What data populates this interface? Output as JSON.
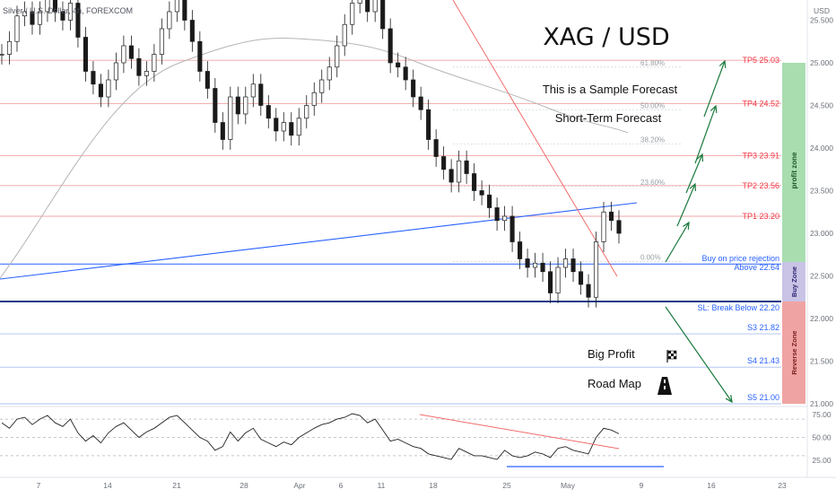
{
  "header": {
    "symbol_line": "Silver / U.S. Dollar, 4h, FOREXCOM"
  },
  "annotations": {
    "title": "XAG / USD",
    "sample": "This is a Sample Forecast",
    "short_term": "Short-Term Forecast",
    "big_profit": "Big Profit",
    "road_map": "Road Map",
    "buy_line1": "Buy on price rejection",
    "buy_line2": "Above 22.64",
    "sl": "SL: Break Below 22.20"
  },
  "zones": {
    "profit": "profit zone",
    "buy": "Buy Zone",
    "reverse": "Reverse Zone"
  },
  "colors": {
    "profit_zone": "#a9ddb0",
    "buy_zone": "#c9c3e6",
    "reverse_zone": "#f0a3a3",
    "red_line": "#f26b6b",
    "blue_line": "#2962ff",
    "candle": "#1a1a1a",
    "arrow": "#1b7a3e"
  },
  "chart_data": {
    "type": "line",
    "price_axis": {
      "unit": "USD",
      "ticks": [
        "25.500",
        "25.000",
        "24.500",
        "24.000",
        "23.500",
        "23.000",
        "22.500",
        "22.000",
        "21.500",
        "21.000"
      ],
      "range": [
        21.0,
        25.7
      ]
    },
    "rsi_axis": {
      "ticks": [
        "75.00",
        "50.00",
        "25.00"
      ],
      "range": [
        20,
        80
      ]
    },
    "time_ticks": [
      "7",
      "14",
      "21",
      "28",
      "Apr",
      "6",
      "11",
      "18",
      "25",
      "May",
      "9",
      "16",
      "23"
    ],
    "targets": [
      {
        "label": "TP5 25.03",
        "price": 25.03
      },
      {
        "label": "TP4 24.52",
        "price": 24.52
      },
      {
        "label": "TP3 23.91",
        "price": 23.91
      },
      {
        "label": "TP2 23.56",
        "price": 23.56
      },
      {
        "label": "TP1 23.20",
        "price": 23.2
      }
    ],
    "supports": [
      {
        "label": "S3 21.82",
        "price": 21.82
      },
      {
        "label": "S4 21.43",
        "price": 21.43
      },
      {
        "label": "S5 21.00",
        "price": 21.0
      }
    ],
    "entry_price": 22.64,
    "stop_price": 22.2,
    "fib_levels": [
      {
        "label": "61.80%",
        "price": 24.95
      },
      {
        "label": "50.00%",
        "price": 24.45
      },
      {
        "label": "38.20%",
        "price": 24.05
      },
      {
        "label": "23.60%",
        "price": 23.55
      },
      {
        "label": "0.00%",
        "price": 22.67
      }
    ],
    "price_series": [
      25.1,
      25.25,
      25.55,
      25.6,
      25.45,
      25.6,
      25.75,
      25.6,
      25.5,
      25.7,
      25.3,
      24.9,
      24.75,
      24.6,
      24.8,
      25.0,
      25.2,
      25.05,
      24.85,
      24.9,
      25.1,
      25.4,
      25.6,
      25.75,
      25.5,
      25.25,
      24.9,
      24.7,
      24.3,
      24.1,
      24.6,
      24.4,
      24.6,
      24.75,
      24.5,
      24.35,
      24.2,
      24.3,
      24.15,
      24.35,
      24.5,
      24.65,
      24.8,
      24.95,
      25.2,
      25.45,
      25.7,
      25.8,
      25.6,
      25.75,
      25.4,
      25.0,
      24.95,
      24.8,
      24.6,
      24.45,
      24.1,
      23.9,
      23.75,
      23.6,
      23.85,
      23.7,
      23.5,
      23.45,
      23.3,
      23.15,
      23.2,
      22.9,
      22.7,
      22.6,
      22.65,
      22.55,
      22.3,
      22.6,
      22.7,
      22.55,
      22.4,
      22.25,
      22.9,
      23.25,
      23.15,
      23.0
    ],
    "rsi_series": [
      66,
      60,
      70,
      72,
      64,
      70,
      74,
      66,
      62,
      70,
      55,
      46,
      52,
      44,
      55,
      62,
      66,
      58,
      50,
      56,
      60,
      66,
      72,
      74,
      66,
      58,
      50,
      46,
      36,
      40,
      56,
      46,
      55,
      60,
      48,
      44,
      40,
      45,
      42,
      50,
      55,
      60,
      64,
      66,
      70,
      72,
      76,
      74,
      66,
      70,
      58,
      46,
      48,
      44,
      40,
      38,
      32,
      30,
      28,
      26,
      38,
      34,
      30,
      30,
      28,
      26,
      36,
      30,
      28,
      30,
      34,
      32,
      28,
      38,
      40,
      36,
      34,
      32,
      50,
      60,
      58,
      54
    ]
  }
}
